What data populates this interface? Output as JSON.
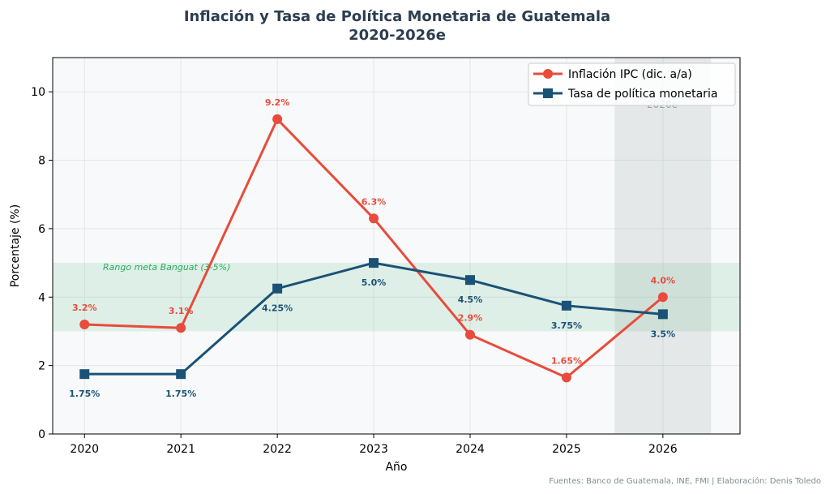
{
  "chart_data": {
    "type": "line",
    "title": "Inflación y Tasa de Política Monetaria de Guatemala",
    "subtitle": "2020-2026e",
    "xlabel": "Año",
    "ylabel": "Porcentaje (%)",
    "x": [
      2020,
      2021,
      2022,
      2023,
      2024,
      2025,
      2026
    ],
    "xticks": [
      "2020",
      "2021",
      "2022",
      "2023",
      "2024",
      "2025",
      "2026"
    ],
    "yticks": [
      "0",
      "2",
      "4",
      "6",
      "8",
      "10"
    ],
    "xlim": [
      2019.67,
      2026.8
    ],
    "ylim": [
      0,
      11
    ],
    "grid": true,
    "legend_position": "top-right",
    "series": [
      {
        "name": "Inflación IPC (dic. a/a)",
        "color": "#e74c3c",
        "marker": "circle",
        "values": [
          3.2,
          3.1,
          9.2,
          6.3,
          2.9,
          1.65,
          4.0
        ],
        "labels": [
          "3.2%",
          "3.1%",
          "9.2%",
          "6.3%",
          "2.9%",
          "1.65%",
          "4.0%"
        ]
      },
      {
        "name": "Tasa de política monetaria",
        "color": "#1a5276",
        "marker": "square",
        "values": [
          1.75,
          1.75,
          4.25,
          5.0,
          4.5,
          3.75,
          3.5
        ],
        "labels": [
          "1.75%",
          "1.75%",
          "4.25%",
          "5.0%",
          "4.5%",
          "3.75%",
          "3.5%"
        ]
      }
    ],
    "annotations": {
      "target_band": {
        "label": "Rango meta Banguat (3-5%)",
        "from": 3,
        "to": 5,
        "color": "#27ae60"
      },
      "estimate_region": {
        "label": "2026e",
        "from": 2025.5,
        "to": 2026.5,
        "color": "#95a5a6"
      }
    }
  },
  "footer": "Fuentes: Banco de Guatemala, INE, FMI | Elaboración: Denis Toledo"
}
